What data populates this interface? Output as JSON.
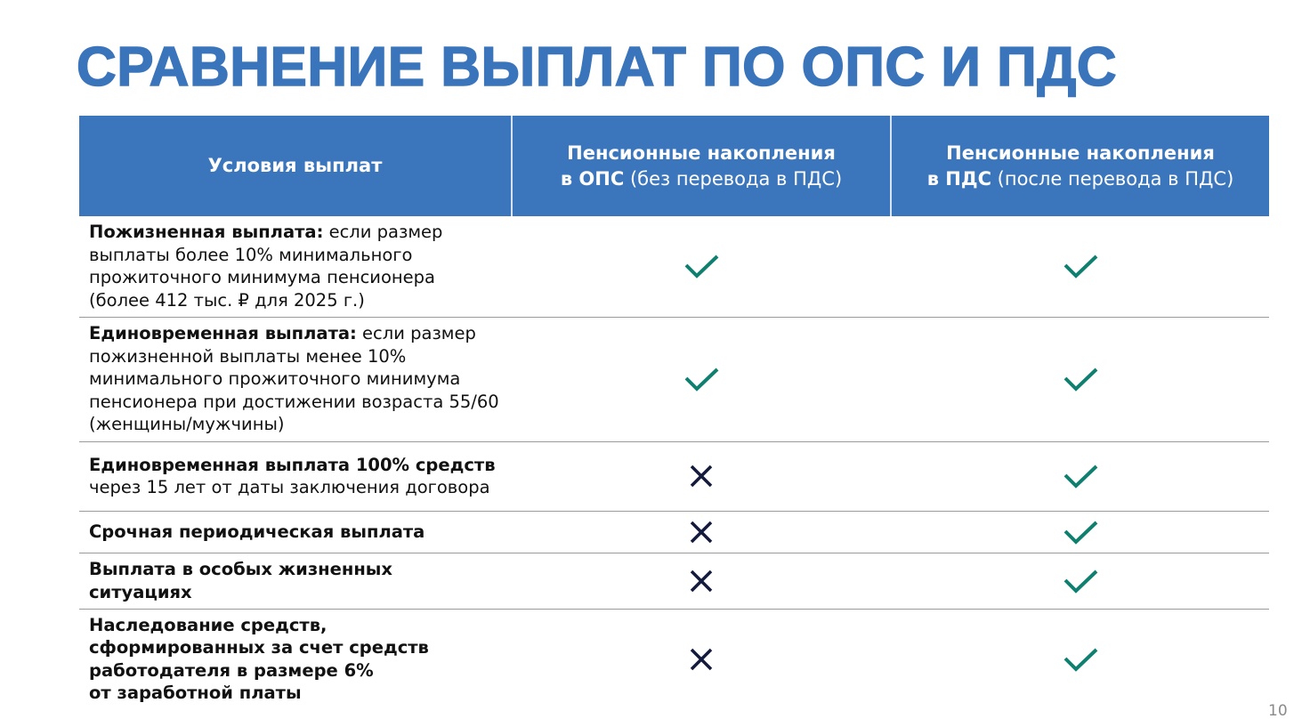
{
  "title": "СРАВНЕНИЕ ВЫПЛАТ ПО ОПС И ПДС",
  "colors": {
    "accent": "#3a75bc",
    "check": "#0f8070",
    "cross": "#141a3c"
  },
  "header": [
    {
      "bold": "Условия выплат",
      "normal": ""
    },
    {
      "bold": "Пенсионные накопления\nв ОПС",
      "normal": " (без перевода в ПДС)"
    },
    {
      "bold": "Пенсионные накопления\nв ПДС",
      "normal": " (после перевода в ПДС)"
    }
  ],
  "rows": [
    {
      "bold": "Пожизненная выплата:",
      "normal": " если размер\nвыплаты более 10% минимального\nпрожиточного минимума пенсионера\n(более 412 тыс. ₽ для 2025 г.)",
      "ops": "check-icon",
      "pds": "check-icon"
    },
    {
      "bold": "Единовременная выплата:",
      "normal": " если размер\nпожизненной выплаты менее 10%\nминимального прожиточного минимума\nпенсионера при достижении возраста 55/60\n(женщины/мужчины)",
      "ops": "check-icon",
      "pds": "check-icon"
    },
    {
      "bold": "Единовременная выплата 100% средств",
      "normal": "\nчерез 15 лет от даты заключения договора",
      "ops": "cross-icon",
      "pds": "check-icon"
    },
    {
      "bold": "Срочная периодическая выплата",
      "normal": "",
      "ops": "cross-icon",
      "pds": "check-icon"
    },
    {
      "bold": "Выплата в особых жизненных\nситуациях",
      "normal": "",
      "ops": "cross-icon",
      "pds": "check-icon"
    },
    {
      "bold": "Наследование средств,\nсформированных за счет средств\nработодателя в размере 6%\nот заработной платы",
      "normal": "",
      "ops": "cross-icon",
      "pds": "check-icon"
    }
  ],
  "page_number": "10"
}
